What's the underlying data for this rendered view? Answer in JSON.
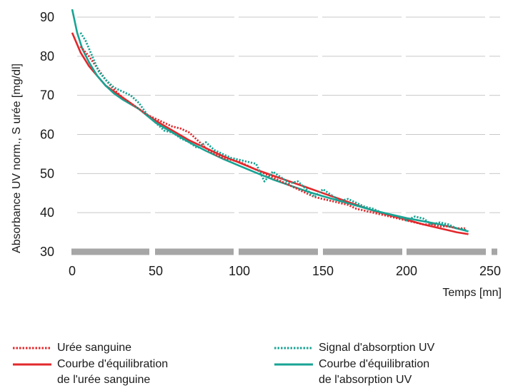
{
  "colors": {
    "red": "#e2282c",
    "teal": "#18a394",
    "grid": "#c8c8c8",
    "baseline": "#a6a6a6"
  },
  "chart_data": {
    "type": "line",
    "xlabel": "Temps [mn]",
    "ylabel": "Absorbance UV norm., S urée [mg/dl]",
    "xlim": [
      0,
      250
    ],
    "ylim": [
      30,
      92
    ],
    "xticks": [
      0,
      50,
      100,
      150,
      200,
      250
    ],
    "yticks": [
      30,
      40,
      50,
      60,
      70,
      80,
      90
    ],
    "grid": true,
    "legend_position": "bottom",
    "series": [
      {
        "name": "Urée sanguine",
        "style": "dotted",
        "color": "#e2282c",
        "x": [
          5,
          10,
          15,
          20,
          25,
          30,
          35,
          40,
          45,
          50,
          55,
          60,
          65,
          70,
          75,
          80,
          85,
          90,
          95,
          100,
          105,
          110,
          115,
          120,
          125,
          130,
          135,
          140,
          145,
          150,
          155,
          160,
          165,
          170,
          175,
          180,
          185,
          190,
          195,
          200,
          205,
          210,
          215,
          220,
          225,
          230,
          235
        ],
        "values": [
          82.5,
          80,
          77,
          74,
          71.5,
          69.5,
          68,
          66.5,
          65,
          64,
          63,
          62,
          61.5,
          60.5,
          58.5,
          56.5,
          55,
          54,
          53.5,
          53,
          52,
          51,
          50,
          49,
          48,
          47,
          46,
          45,
          44,
          43.5,
          43,
          42.5,
          42,
          41,
          40.5,
          40,
          39.5,
          39,
          38.5,
          38,
          37.5,
          37,
          37,
          36.5,
          36.5,
          36,
          36
        ]
      },
      {
        "name": "Courbe d'équilibration de l'urée sanguine",
        "style": "solid",
        "color": "#e2282c",
        "x": [
          0,
          5,
          10,
          15,
          20,
          25,
          30,
          40,
          50,
          60,
          70,
          80,
          90,
          100,
          110,
          120,
          130,
          140,
          150,
          160,
          170,
          180,
          190,
          200,
          210,
          220,
          230,
          237
        ],
        "values": [
          86,
          81,
          77.5,
          75,
          72.5,
          71,
          69.5,
          66.5,
          63.5,
          61,
          58.5,
          56.5,
          54.5,
          52.8,
          51,
          49.5,
          48,
          46.5,
          45,
          43.5,
          42,
          40.5,
          39.3,
          38.2,
          37,
          36,
          35,
          34.5
        ]
      },
      {
        "name": "Signal d'absorption UV",
        "style": "dotted",
        "color": "#18a394",
        "x": [
          5,
          8,
          12,
          16,
          20,
          25,
          30,
          35,
          40,
          45,
          50,
          55,
          60,
          65,
          70,
          75,
          80,
          85,
          90,
          95,
          100,
          105,
          110,
          115,
          120,
          125,
          130,
          135,
          140,
          145,
          150,
          155,
          160,
          165,
          170,
          175,
          180,
          185,
          190,
          195,
          200,
          205,
          210,
          215,
          220,
          225,
          230,
          236
        ],
        "values": [
          86,
          84,
          80,
          76,
          74,
          72,
          71,
          70,
          68,
          65,
          63,
          61,
          60.5,
          59,
          58,
          56.5,
          58,
          56,
          55,
          54,
          53.5,
          53,
          52.5,
          48,
          50.5,
          49,
          47.5,
          48,
          46,
          44,
          46,
          44.5,
          43,
          43.5,
          42.5,
          41.5,
          41,
          40,
          39.5,
          39,
          38,
          39,
          38.5,
          37,
          37.5,
          37,
          36,
          35.5
        ]
      },
      {
        "name": "Courbe d'équilibration de l'absorption UV",
        "style": "solid",
        "color": "#18a394",
        "x": [
          0,
          3,
          6,
          10,
          15,
          20,
          25,
          30,
          40,
          50,
          60,
          70,
          80,
          90,
          100,
          110,
          120,
          130,
          140,
          150,
          160,
          170,
          180,
          190,
          200,
          210,
          220,
          230,
          237
        ],
        "values": [
          92,
          86,
          82,
          78.5,
          75,
          72.5,
          70.5,
          69,
          66.5,
          63,
          60.5,
          58,
          55.8,
          53.8,
          52,
          50.2,
          48.5,
          47,
          45.5,
          44.2,
          43,
          41.8,
          40.6,
          39.6,
          38.6,
          37.8,
          37,
          36,
          35.2
        ]
      }
    ]
  },
  "legend": {
    "items": [
      {
        "lines": [
          "Urée sanguine"
        ]
      },
      {
        "lines": [
          "Courbe d'équilibration",
          "de l'urée sanguine"
        ]
      },
      {
        "lines": [
          "Signal d'absorption UV"
        ]
      },
      {
        "lines": [
          "Courbe d'équilibration",
          "de l'absorption UV"
        ]
      }
    ]
  }
}
